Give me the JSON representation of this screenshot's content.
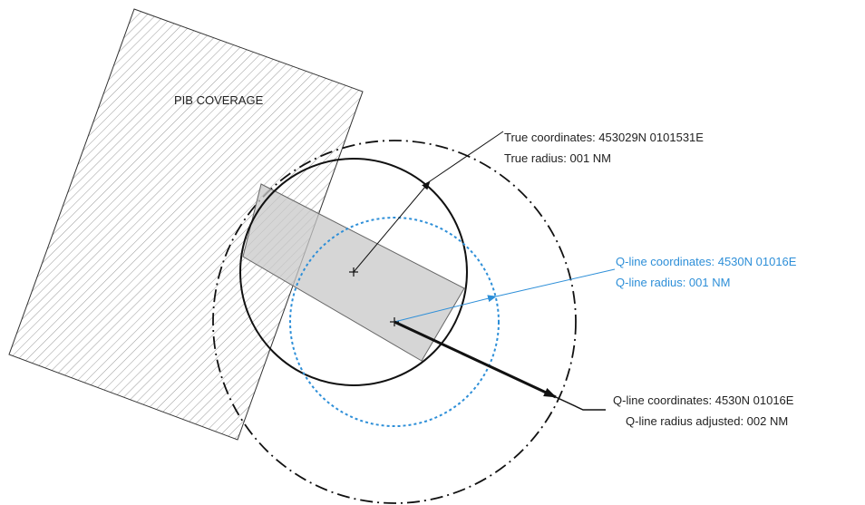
{
  "labels": {
    "pib_coverage": "PIB COVERAGE",
    "true_coordinates": "True coordinates: 453029N 0101531E",
    "true_radius": "True radius: 001 NM",
    "qline_coordinates": "Q-line coordinates: 4530N 01016E",
    "qline_radius": "Q-line radius: 001 NM",
    "qline_adjusted_coordinates": "Q-line coordinates: 4530N 01016E",
    "qline_radius_adjusted": "Q-line  radius adjusted: 002 NM"
  },
  "colors": {
    "line": "#111111",
    "blue": "#2e8fd8",
    "hatch": "#9a9a9a",
    "fill_gray": "#c8c8c8"
  },
  "icons": {
    "true_center": "plus-marker",
    "qline_center": "plus-marker"
  }
}
